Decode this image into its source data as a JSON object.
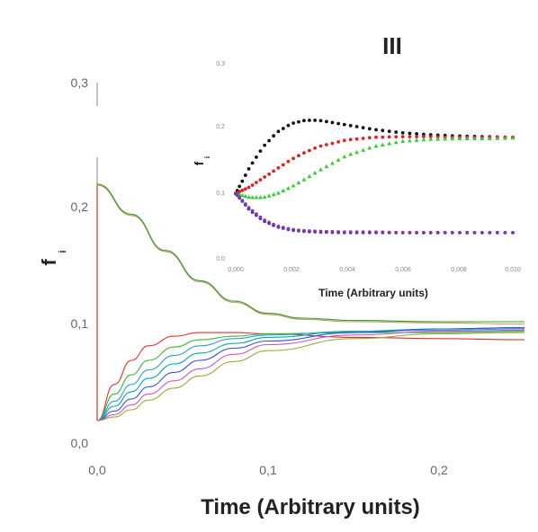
{
  "chart_data": [
    {
      "type": "line",
      "panel": "main",
      "title": "",
      "xlabel": "Time (Arbitrary units)",
      "ylabel": "f",
      "ylabel_subscript": "i",
      "xlim": [
        0,
        0.25
      ],
      "ylim": [
        0,
        0.3
      ],
      "xticks": [
        0.0,
        0.1,
        0.2
      ],
      "xtick_labels": [
        "0,0",
        "0,1",
        "0,2"
      ],
      "yticks": [
        0.0,
        0.1,
        0.2,
        0.3
      ],
      "ytick_labels": [
        "0,0",
        "0,1",
        "0,2",
        "0,3"
      ],
      "grid": false,
      "legend": "none",
      "series": [
        {
          "color": "#cc9966",
          "x": [
            0,
            0.02,
            0.04,
            0.06,
            0.08,
            0.1,
            0.12,
            0.15,
            0.2,
            0.25
          ],
          "values": [
            0.215,
            0.19,
            0.16,
            0.135,
            0.118,
            0.108,
            0.104,
            0.102,
            0.101,
            0.1
          ]
        },
        {
          "color": "#2ca02c",
          "x": [
            0,
            0.02,
            0.04,
            0.06,
            0.08,
            0.1,
            0.12,
            0.15,
            0.2,
            0.25
          ],
          "values": [
            0.216,
            0.191,
            0.161,
            0.136,
            0.119,
            0.109,
            0.105,
            0.103,
            0.102,
            0.102
          ]
        },
        {
          "color": "#e03030",
          "x": [
            0,
            0.01,
            0.02,
            0.03,
            0.045,
            0.06,
            0.08,
            0.1,
            0.15,
            0.2,
            0.25
          ],
          "values": [
            0.02,
            0.05,
            0.07,
            0.082,
            0.09,
            0.093,
            0.093,
            0.092,
            0.089,
            0.088,
            0.087
          ]
        },
        {
          "color": "#33bb33",
          "x": [
            0,
            0.01,
            0.02,
            0.03,
            0.045,
            0.06,
            0.08,
            0.1,
            0.15,
            0.2,
            0.25
          ],
          "values": [
            0.02,
            0.042,
            0.058,
            0.07,
            0.081,
            0.087,
            0.09,
            0.092,
            0.093,
            0.093,
            0.094
          ]
        },
        {
          "color": "#3399dd",
          "x": [
            0,
            0.01,
            0.02,
            0.03,
            0.045,
            0.06,
            0.08,
            0.1,
            0.15,
            0.2,
            0.25
          ],
          "values": [
            0.02,
            0.036,
            0.05,
            0.062,
            0.074,
            0.082,
            0.088,
            0.091,
            0.094,
            0.095,
            0.096
          ]
        },
        {
          "color": "#00aaaa",
          "x": [
            0,
            0.01,
            0.02,
            0.03,
            0.045,
            0.06,
            0.08,
            0.1,
            0.15,
            0.2,
            0.25
          ],
          "values": [
            0.02,
            0.032,
            0.044,
            0.055,
            0.067,
            0.076,
            0.084,
            0.089,
            0.094,
            0.096,
            0.097
          ]
        },
        {
          "color": "#3355cc",
          "x": [
            0,
            0.01,
            0.02,
            0.03,
            0.045,
            0.06,
            0.08,
            0.1,
            0.15,
            0.2,
            0.25
          ],
          "values": [
            0.02,
            0.028,
            0.038,
            0.048,
            0.06,
            0.07,
            0.08,
            0.086,
            0.093,
            0.096,
            0.097
          ]
        },
        {
          "color": "#cc55cc",
          "x": [
            0,
            0.01,
            0.02,
            0.03,
            0.045,
            0.06,
            0.08,
            0.1,
            0.15,
            0.2,
            0.25
          ],
          "values": [
            0.02,
            0.025,
            0.033,
            0.042,
            0.053,
            0.063,
            0.075,
            0.083,
            0.091,
            0.094,
            0.095
          ]
        },
        {
          "color": "#99aa33",
          "x": [
            0,
            0.01,
            0.02,
            0.03,
            0.045,
            0.06,
            0.08,
            0.1,
            0.15,
            0.2,
            0.25
          ],
          "values": [
            0.02,
            0.023,
            0.029,
            0.037,
            0.047,
            0.057,
            0.069,
            0.078,
            0.088,
            0.092,
            0.093
          ]
        }
      ]
    },
    {
      "type": "scatter",
      "panel": "inset",
      "title": "III",
      "xlabel": "Time (Arbitrary units)",
      "ylabel": "f",
      "ylabel_subscript": "i",
      "xlim": [
        0,
        0.01
      ],
      "ylim": [
        0,
        0.3
      ],
      "xticks": [
        0.0,
        0.002,
        0.004,
        0.006,
        0.008,
        0.01
      ],
      "xtick_labels": [
        "0,000",
        "0,002",
        "0,004",
        "0,006",
        "0,008",
        "0,010"
      ],
      "yticks": [
        0.0,
        0.1,
        0.2,
        0.3
      ],
      "ytick_labels": [
        "0,0",
        "0,1",
        "0,2",
        "0,3"
      ],
      "grid": false,
      "legend": "none",
      "series": [
        {
          "color": "#111111",
          "marker": "circle",
          "x": [
            0,
            0.0005,
            0.001,
            0.0015,
            0.002,
            0.0025,
            0.003,
            0.004,
            0.005,
            0.006,
            0.007,
            0.008,
            0.009,
            0.01
          ],
          "values": [
            0.1,
            0.14,
            0.172,
            0.194,
            0.207,
            0.212,
            0.212,
            0.205,
            0.198,
            0.193,
            0.19,
            0.188,
            0.187,
            0.186
          ]
        },
        {
          "color": "#dd2222",
          "marker": "circle",
          "x": [
            0,
            0.0005,
            0.001,
            0.0015,
            0.002,
            0.0025,
            0.003,
            0.004,
            0.005,
            0.006,
            0.007,
            0.008,
            0.009,
            0.01
          ],
          "values": [
            0.1,
            0.11,
            0.124,
            0.138,
            0.152,
            0.163,
            0.172,
            0.182,
            0.186,
            0.187,
            0.187,
            0.186,
            0.186,
            0.186
          ]
        },
        {
          "color": "#33cc33",
          "marker": "triangle",
          "x": [
            0,
            0.0005,
            0.001,
            0.0015,
            0.002,
            0.0025,
            0.003,
            0.004,
            0.005,
            0.006,
            0.007,
            0.008,
            0.009,
            0.01
          ],
          "values": [
            0.1,
            0.094,
            0.094,
            0.1,
            0.11,
            0.122,
            0.135,
            0.158,
            0.172,
            0.18,
            0.183,
            0.184,
            0.184,
            0.185
          ]
        },
        {
          "color": "#2233cc",
          "marker": "circle",
          "x": [
            0,
            0.0005,
            0.001,
            0.0015,
            0.002,
            0.0025,
            0.003,
            0.004,
            0.005,
            0.006,
            0.007,
            0.008,
            0.009,
            0.01
          ],
          "values": [
            0.1,
            0.075,
            0.058,
            0.049,
            0.044,
            0.042,
            0.041,
            0.04,
            0.04,
            0.04,
            0.04,
            0.04,
            0.04,
            0.04
          ]
        },
        {
          "color": "#8833aa",
          "marker": "circle",
          "x": [
            0,
            0.0005,
            0.001,
            0.0015,
            0.002,
            0.0025,
            0.003,
            0.004,
            0.005,
            0.006,
            0.007,
            0.008,
            0.009,
            0.01
          ],
          "values": [
            0.1,
            0.077,
            0.06,
            0.05,
            0.045,
            0.043,
            0.042,
            0.041,
            0.041,
            0.04,
            0.04,
            0.04,
            0.04,
            0.04
          ]
        }
      ]
    }
  ]
}
